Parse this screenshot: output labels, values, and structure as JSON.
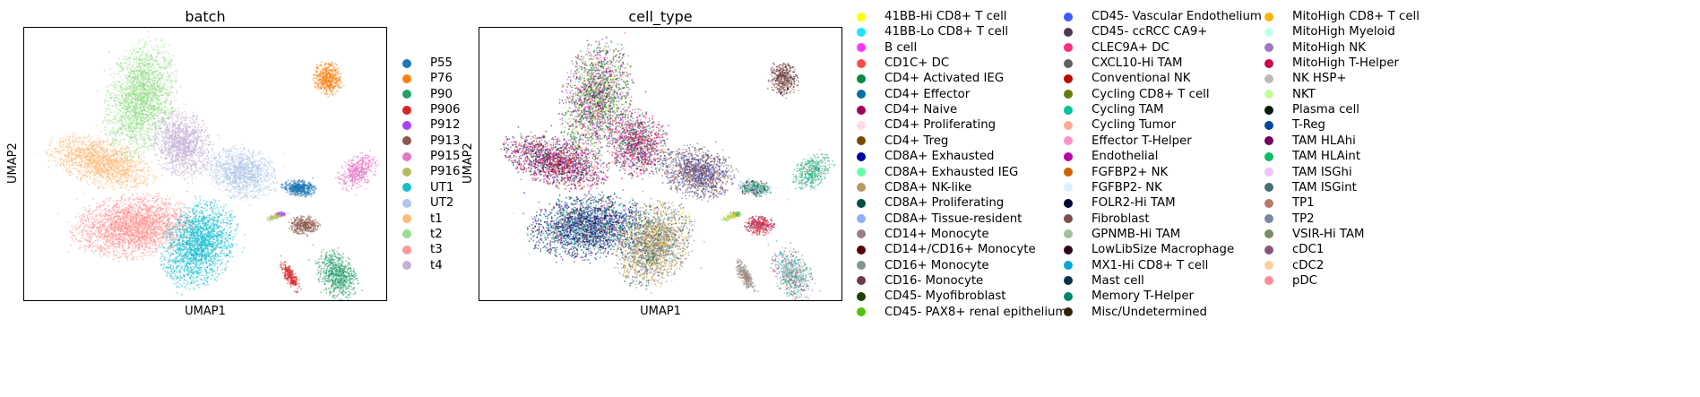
{
  "panels": [
    {
      "title": "batch",
      "xlabel": "UMAP1",
      "ylabel": "UMAP2",
      "legend": [
        {
          "label": "P55",
          "color": "#1f77b4"
        },
        {
          "label": "P76",
          "color": "#ff7f0e"
        },
        {
          "label": "P90",
          "color": "#279e68"
        },
        {
          "label": "P906",
          "color": "#d62728"
        },
        {
          "label": "P912",
          "color": "#aa40fc"
        },
        {
          "label": "P913",
          "color": "#8c564b"
        },
        {
          "label": "P915",
          "color": "#e377c2"
        },
        {
          "label": "P916",
          "color": "#b5bd61"
        },
        {
          "label": "UT1",
          "color": "#17becf"
        },
        {
          "label": "UT2",
          "color": "#aec7e8"
        },
        {
          "label": "t1",
          "color": "#ffbb78"
        },
        {
          "label": "t2",
          "color": "#98df8a"
        },
        {
          "label": "t3",
          "color": "#ff9896"
        },
        {
          "label": "t4",
          "color": "#c5b0d5"
        }
      ]
    },
    {
      "title": "cell_type",
      "xlabel": "UMAP1",
      "ylabel": "UMAP2",
      "legend": [
        {
          "label": "41BB-Hi CD8+ T cell",
          "color": "#ffff00"
        },
        {
          "label": "41BB-Lo CD8+ T cell",
          "color": "#1ce6ff"
        },
        {
          "label": "B cell",
          "color": "#ff34ff"
        },
        {
          "label": "CD1C+ DC",
          "color": "#ff4a46"
        },
        {
          "label": "CD4+ Activated IEG",
          "color": "#008941"
        },
        {
          "label": "CD4+ Effector",
          "color": "#006fa6"
        },
        {
          "label": "CD4+ Naive",
          "color": "#a30059"
        },
        {
          "label": "CD4+ Proliferating",
          "color": "#ffdbe5"
        },
        {
          "label": "CD4+ Treg",
          "color": "#7a4900"
        },
        {
          "label": "CD8A+ Exhausted",
          "color": "#0000a6"
        },
        {
          "label": "CD8A+ Exhausted IEG",
          "color": "#63ffac"
        },
        {
          "label": "CD8A+ NK-like",
          "color": "#b79762"
        },
        {
          "label": "CD8A+ Proliferating",
          "color": "#004d43"
        },
        {
          "label": "CD8A+ Tissue-resident",
          "color": "#8fb0ff"
        },
        {
          "label": "CD14+ Monocyte",
          "color": "#997d87"
        },
        {
          "label": "CD14+/CD16+ Monocyte",
          "color": "#5a0007"
        },
        {
          "label": "CD16+ Monocyte",
          "color": "#809693"
        },
        {
          "label": "CD16- Monocyte",
          "color": "#6a3a4c"
        },
        {
          "label": "CD45- Myofibroblast",
          "color": "#1b4400"
        },
        {
          "label": "CD45- PAX8+ renal epithelium",
          "color": "#4fc601"
        },
        {
          "label": "CD45- Vascular Endothelium",
          "color": "#3b5dff"
        },
        {
          "label": "CD45- ccRCC CA9+",
          "color": "#4a3b53"
        },
        {
          "label": "CLEC9A+ DC",
          "color": "#ff2f80"
        },
        {
          "label": "CXCL10-Hi TAM",
          "color": "#61615a"
        },
        {
          "label": "Conventional NK",
          "color": "#ba0900"
        },
        {
          "label": "Cycling CD8+ T cell",
          "color": "#6b7900"
        },
        {
          "label": "Cycling TAM",
          "color": "#00c2a0"
        },
        {
          "label": "Cycling Tumor",
          "color": "#ffaa92"
        },
        {
          "label": "Effector T-Helper",
          "color": "#ff90c9"
        },
        {
          "label": "Endothelial",
          "color": "#b903aa"
        },
        {
          "label": "FGFBP2+ NK",
          "color": "#d16100"
        },
        {
          "label": "FGFBP2- NK",
          "color": "#ddefff"
        },
        {
          "label": "FOLR2-Hi TAM",
          "color": "#000035"
        },
        {
          "label": "Fibroblast",
          "color": "#7b4f4b"
        },
        {
          "label": "GPNMB-Hi TAM",
          "color": "#a1c299"
        },
        {
          "label": "LowLibSize Macrophage",
          "color": "#300018"
        },
        {
          "label": "MX1-Hi CD8+ T cell",
          "color": "#0aa6d8"
        },
        {
          "label": "Mast cell",
          "color": "#013349"
        },
        {
          "label": "Memory T-Helper",
          "color": "#00846f"
        },
        {
          "label": "Misc/Undetermined",
          "color": "#372101"
        },
        {
          "label": "MitoHigh CD8+ T cell",
          "color": "#ffb500"
        },
        {
          "label": "MitoHigh Myeloid",
          "color": "#c2ffed"
        },
        {
          "label": "MitoHigh NK",
          "color": "#a079bf"
        },
        {
          "label": "MitoHigh T-Helper",
          "color": "#cc0744"
        },
        {
          "label": "NK HSP+",
          "color": "#c0b9b2"
        },
        {
          "label": "NKT",
          "color": "#c2ff99"
        },
        {
          "label": "Plasma cell",
          "color": "#001e09"
        },
        {
          "label": "T-Reg",
          "color": "#00489c"
        },
        {
          "label": "TAM HLAhi",
          "color": "#6f0062"
        },
        {
          "label": "TAM HLAint",
          "color": "#0cbd66"
        },
        {
          "label": "TAM ISGhi",
          "color": "#eec3ff"
        },
        {
          "label": "TAM ISGint",
          "color": "#456d75"
        },
        {
          "label": "TP1",
          "color": "#b77b68"
        },
        {
          "label": "TP2",
          "color": "#7a87a1"
        },
        {
          "label": "VSIR-Hi TAM",
          "color": "#788d66"
        },
        {
          "label": "cDC1",
          "color": "#885578"
        },
        {
          "label": "cDC2",
          "color": "#fad09f"
        },
        {
          "label": "pDC",
          "color": "#ff8a9a"
        }
      ]
    }
  ],
  "chart_data": [
    {
      "type": "scatter",
      "title": "batch",
      "xlabel": "UMAP1",
      "ylabel": "UMAP2",
      "xticks": [],
      "yticks": [],
      "legend_placement": "right",
      "series": [
        {
          "name": "P55",
          "x": [
            7.6
          ],
          "y": [
            4.3
          ]
        },
        {
          "name": "P76",
          "x": [
            8.2
          ],
          "y": [
            8.7
          ]
        },
        {
          "name": "P90",
          "x": [
            8.5
          ],
          "y": [
            1.4
          ]
        },
        {
          "name": "P906",
          "x": [
            7.3
          ],
          "y": [
            1.1
          ]
        },
        {
          "name": "P912",
          "x": [
            7.0
          ],
          "y": [
            3.3
          ]
        },
        {
          "name": "P913",
          "x": [
            7.7
          ],
          "y": [
            2.9
          ]
        },
        {
          "name": "P915",
          "x": [
            9.1
          ],
          "y": [
            5.3
          ]
        },
        {
          "name": "P916",
          "x": [
            6.9
          ],
          "y": [
            3.1
          ]
        },
        {
          "name": "UT1",
          "x": [
            4.7
          ],
          "y": [
            2.5
          ]
        },
        {
          "name": "UT2",
          "x": [
            5.9
          ],
          "y": [
            5.3
          ]
        },
        {
          "name": "t1",
          "x": [
            1.2
          ],
          "y": [
            5.8
          ]
        },
        {
          "name": "t2",
          "x": [
            3.2
          ],
          "y": [
            8.4
          ]
        },
        {
          "name": "t3",
          "x": [
            3.0
          ],
          "y": [
            3.9
          ]
        },
        {
          "name": "t4",
          "x": [
            4.8
          ],
          "y": [
            6.1
          ]
        }
      ],
      "grid": false
    },
    {
      "type": "scatter",
      "title": "cell_type",
      "xlabel": "UMAP1",
      "ylabel": "UMAP2",
      "xticks": [],
      "yticks": [],
      "legend_placement": "right",
      "legend_columns": 3,
      "grid": false
    }
  ]
}
